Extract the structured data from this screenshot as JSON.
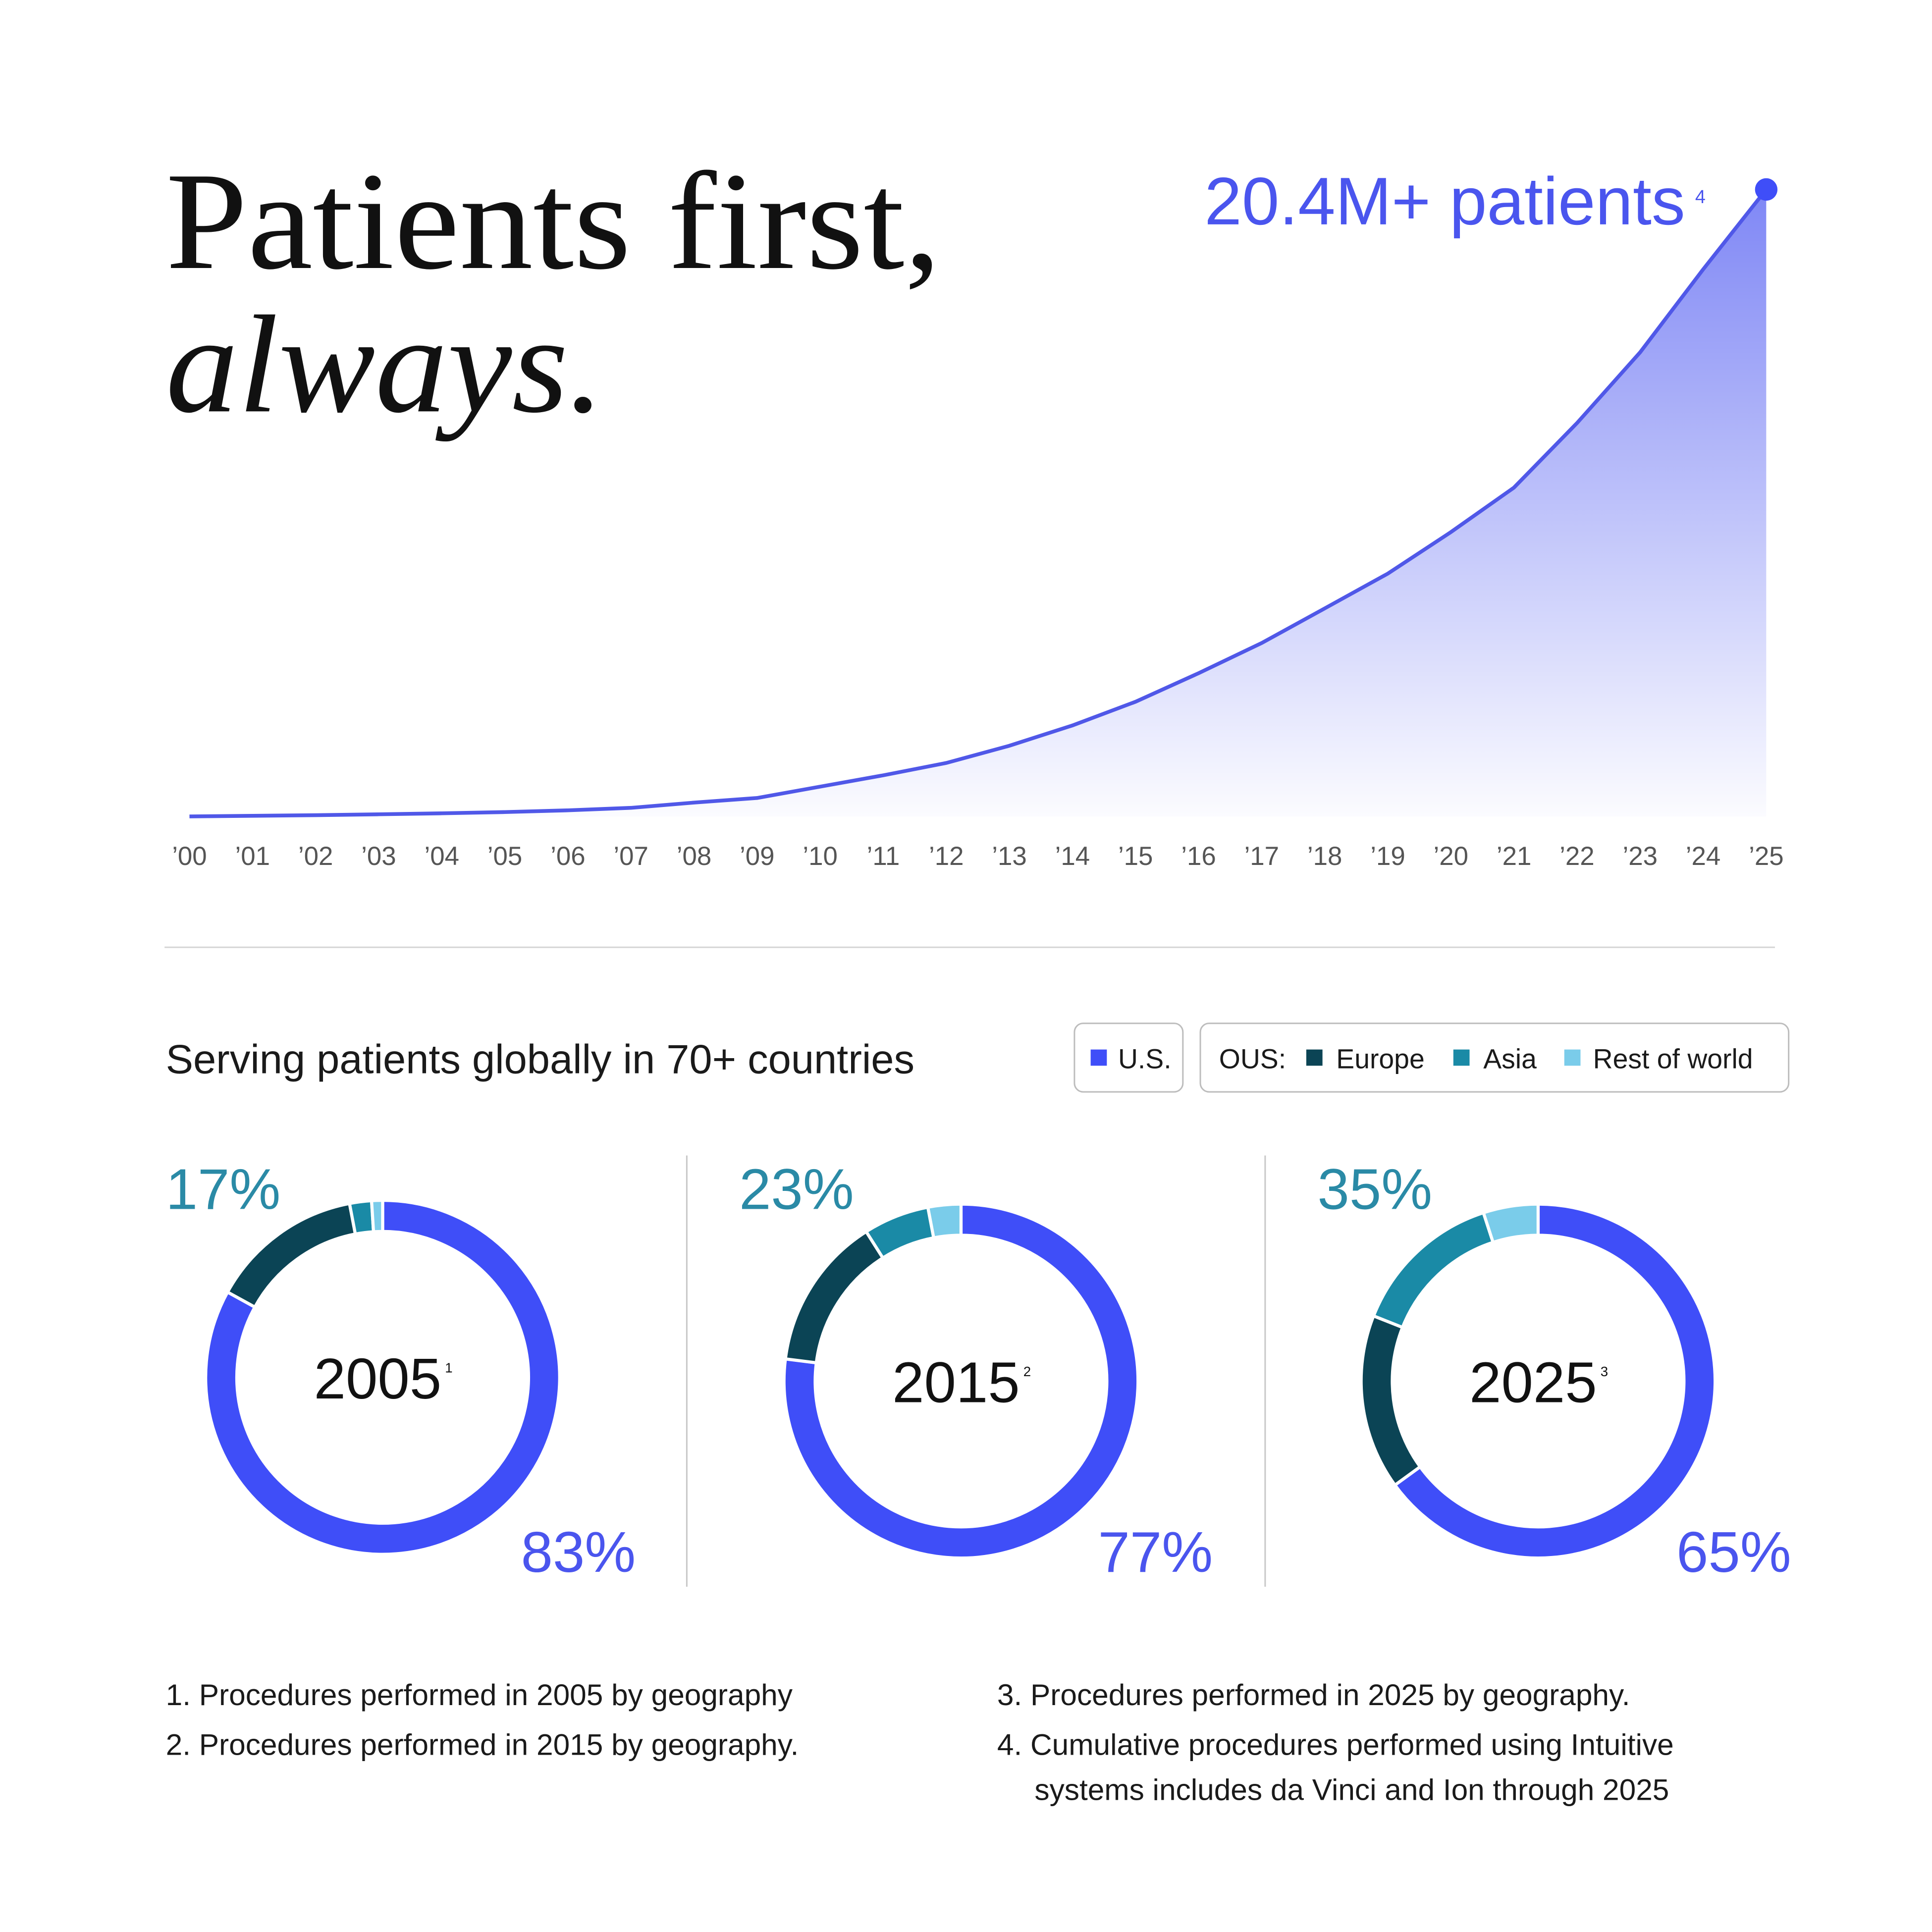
{
  "header": {
    "title_line1": "Patients first,",
    "title_line2": "always."
  },
  "chart_data": [
    {
      "type": "area",
      "annotation": "20.4M+ patients",
      "annotation_ref": "4",
      "categories": [
        "’00",
        "’01",
        "’02",
        "’03",
        "’04",
        "’05",
        "’06",
        "’07",
        "’08",
        "’09",
        "’10",
        "’11",
        "’12",
        "’13",
        "’14",
        "’15",
        "’16",
        "’17",
        "’18",
        "’19",
        "’20",
        "’21",
        "’22",
        "’23",
        "’24",
        "’25"
      ],
      "values": [
        0,
        0.02,
        0.04,
        0.07,
        0.1,
        0.14,
        0.2,
        0.28,
        0.45,
        0.6,
        0.97,
        1.34,
        1.74,
        2.3,
        2.96,
        3.73,
        4.66,
        5.64,
        6.77,
        7.9,
        9.25,
        10.7,
        12.8,
        15.1,
        17.8,
        20.4
      ],
      "color": "#5058e8"
    },
    {
      "type": "donut",
      "center_label": "2005",
      "center_ref": "1",
      "values": [
        83,
        14,
        2,
        1
      ],
      "value_labels": [
        "83%",
        null,
        null,
        null
      ],
      "ous_label": "17%"
    },
    {
      "type": "donut",
      "center_label": "2015",
      "center_ref": "2",
      "values": [
        77,
        14,
        6,
        3
      ],
      "value_labels": [
        "77%",
        null,
        null,
        null
      ],
      "ous_label": "23%"
    },
    {
      "type": "donut",
      "center_label": "2025",
      "center_ref": "3",
      "values": [
        65,
        16,
        14,
        5
      ],
      "value_labels": [
        "65%",
        null,
        null,
        null
      ],
      "ous_label": "35%"
    }
  ],
  "subtitle": "Serving patients globally in 70+ countries",
  "legend": {
    "us": {
      "label": "U.S.",
      "color": "#3f4ef8"
    },
    "ous_label": "OUS:",
    "ous": [
      {
        "label": "Europe",
        "color": "#0b4455"
      },
      {
        "label": "Asia",
        "color": "#1a8aa6"
      },
      {
        "label": "Rest of world",
        "color": "#7accea"
      }
    ]
  },
  "footnotes": [
    "1. Procedures performed in 2005 by geography",
    "2. Procedures performed in 2015 by geography.",
    "3.  Procedures performed in 2025 by geography.",
    "4.  Cumulative procedures performed using Intuitive",
    "systems includes da Vinci and Ion through 2025"
  ]
}
